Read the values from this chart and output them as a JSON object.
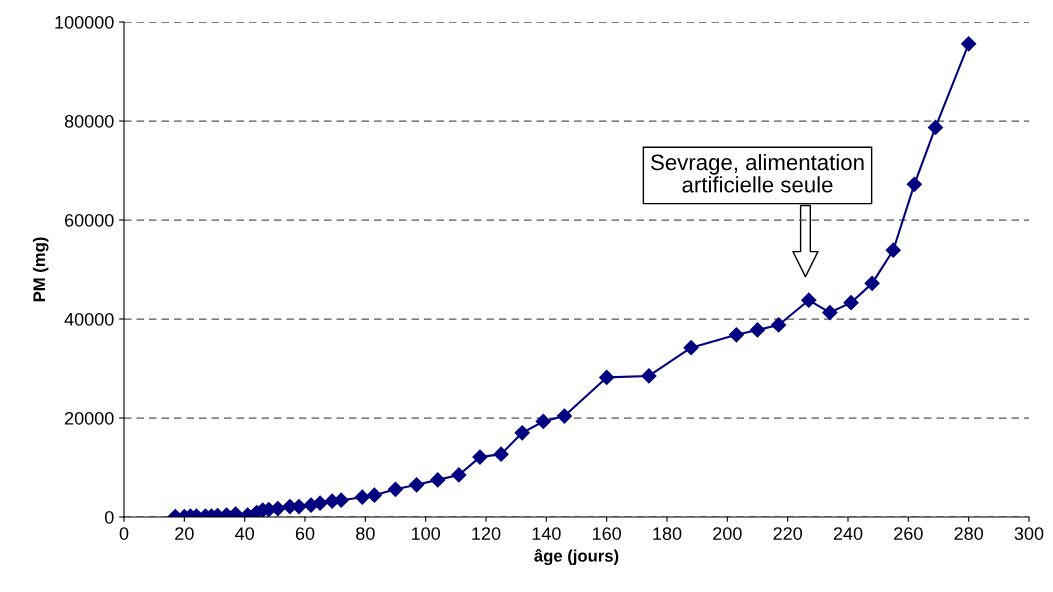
{
  "chart_data": {
    "type": "line",
    "xlabel": "âge (jours)",
    "ylabel": "PM (mg)",
    "x": [
      17,
      20,
      22,
      24,
      27,
      29,
      31,
      34,
      37,
      41,
      44,
      46,
      48,
      51,
      55,
      58,
      62,
      65,
      69,
      72,
      79,
      83,
      90,
      97,
      104,
      111,
      118,
      125,
      132,
      139,
      146,
      160,
      174,
      188,
      203,
      210,
      217,
      227,
      234,
      241,
      248,
      255,
      262,
      269,
      280
    ],
    "series": [
      {
        "color": "#000080",
        "values": [
          100,
          100,
          200,
          200,
          200,
          200,
          300,
          400,
          600,
          400,
          900,
          1400,
          1500,
          1700,
          2100,
          2100,
          2400,
          2800,
          3200,
          3400,
          4000,
          4400,
          5600,
          6500,
          7500,
          8500,
          12100,
          12700,
          17000,
          19300,
          20400,
          28200,
          28500,
          34200,
          36800,
          37800,
          38800,
          43800,
          41300,
          43300,
          47200,
          53900,
          67200,
          78700,
          95600
        ]
      }
    ],
    "xlim": [
      0,
      300
    ],
    "xticks": [
      0,
      20,
      40,
      60,
      80,
      100,
      120,
      140,
      160,
      180,
      200,
      220,
      240,
      260,
      280,
      300
    ],
    "ylim": [
      0,
      100000
    ],
    "yticks": [
      0,
      20000,
      40000,
      60000,
      80000,
      100000
    ],
    "grid": "y",
    "marker": "diamond",
    "line_style": "solid",
    "annotations": [
      "Sevrage, alimentation\nartificielle seule"
    ]
  }
}
